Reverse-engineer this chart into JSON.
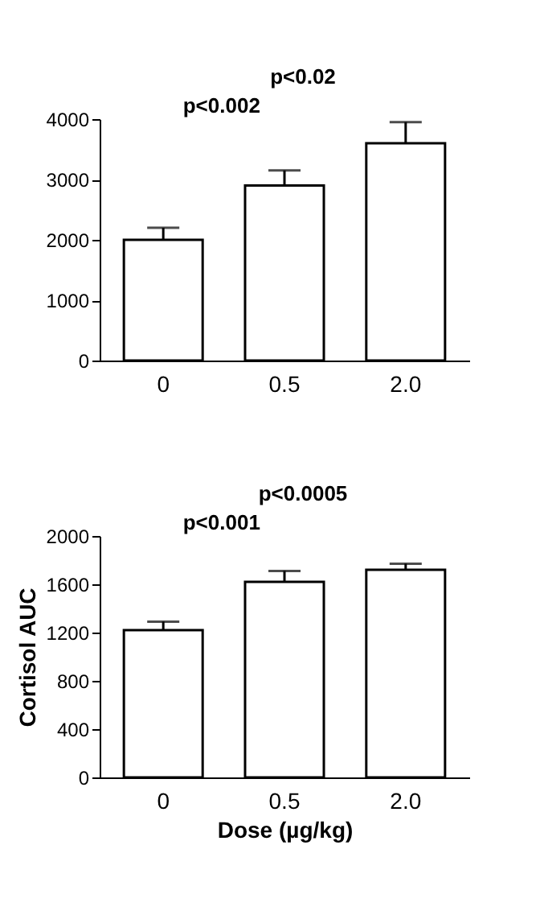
{
  "chart_data": [
    {
      "type": "bar",
      "categories": [
        "0",
        "0.5",
        "2.0"
      ],
      "values": [
        2000,
        2900,
        3600
      ],
      "errors": [
        200,
        250,
        350
      ],
      "color": "#ffffff",
      "ylim": [
        0,
        4000
      ],
      "yticks": [
        0,
        1000,
        2000,
        3000,
        4000
      ],
      "grid": false,
      "annotations": [
        "p<0.002",
        "p<0.02"
      ]
    },
    {
      "type": "bar",
      "categories": [
        "0",
        "0.5",
        "2.0"
      ],
      "values": [
        1220,
        1620,
        1720
      ],
      "errors": [
        70,
        90,
        50
      ],
      "color": "#ffffff",
      "ylim": [
        0,
        2000
      ],
      "yticks": [
        0,
        400,
        800,
        1200,
        1600,
        2000
      ],
      "grid": false,
      "xlabel": "Dose (µg/kg)",
      "ylabel": "Cortisol AUC",
      "annotations": [
        "p<0.001",
        "p<0.0005"
      ]
    }
  ]
}
